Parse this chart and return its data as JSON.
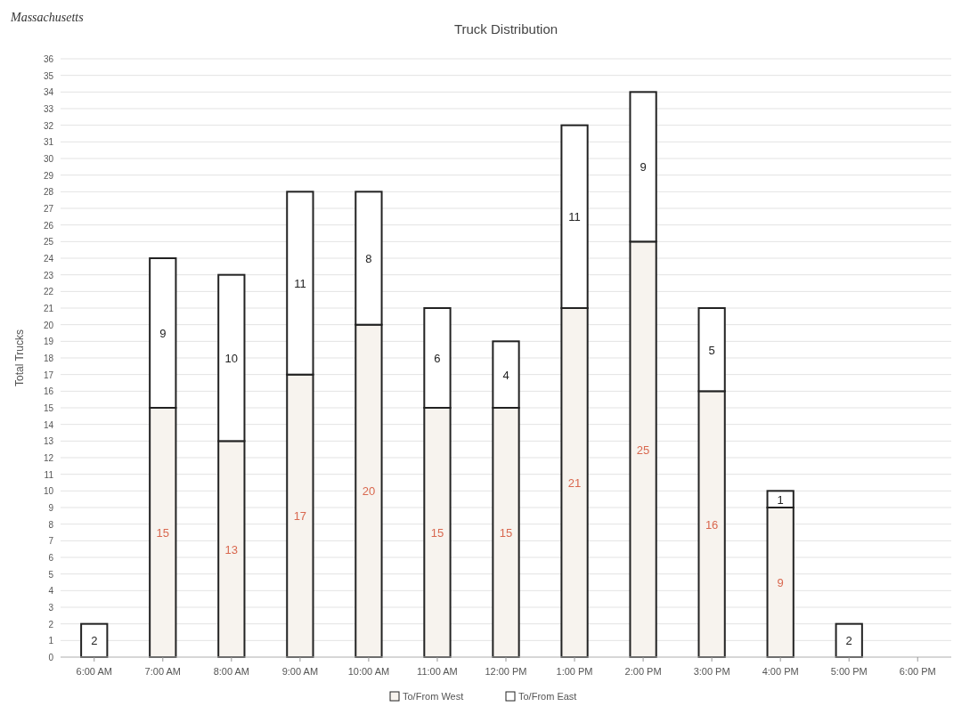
{
  "chart_data": {
    "type": "bar",
    "stacked": true,
    "title": "Truck Distribution",
    "ylabel": "Total Trucks",
    "annotations": [
      "Massachusetts"
    ],
    "categories": [
      "6:00 AM",
      "7:00 AM",
      "8:00 AM",
      "9:00 AM",
      "10:00 AM",
      "11:00 AM",
      "12:00 PM",
      "1:00 PM",
      "2:00 PM",
      "3:00 PM",
      "4:00 PM",
      "5:00 PM",
      "6:00 PM"
    ],
    "series": [
      {
        "name": "To/From West",
        "color": "#f7f3ee",
        "values": [
          0,
          15,
          13,
          17,
          20,
          15,
          15,
          21,
          25,
          16,
          9,
          0,
          0
        ],
        "value_labels": [
          null,
          "15",
          "13",
          "17",
          "20",
          "15",
          "15",
          "21",
          "25",
          "16",
          "9",
          null,
          null
        ]
      },
      {
        "name": "To/From East",
        "color": "#ffffff",
        "values": [
          2,
          9,
          10,
          11,
          8,
          6,
          4,
          11,
          9,
          5,
          1,
          2,
          0
        ],
        "value_labels": [
          "2",
          "9",
          "10",
          "11",
          "8",
          "6",
          "4",
          "11",
          "9",
          "5",
          "1",
          "2",
          null
        ]
      }
    ],
    "ylim": [
      0,
      36
    ],
    "yticks": [
      0,
      1,
      2,
      3,
      4,
      5,
      6,
      7,
      8,
      9,
      10,
      11,
      12,
      13,
      14,
      15,
      16,
      17,
      18,
      19,
      20,
      21,
      22,
      23,
      24,
      25,
      26,
      27,
      28,
      29,
      30,
      31,
      32,
      33,
      34,
      35,
      36
    ],
    "grid": "y",
    "legend": "bottom"
  }
}
